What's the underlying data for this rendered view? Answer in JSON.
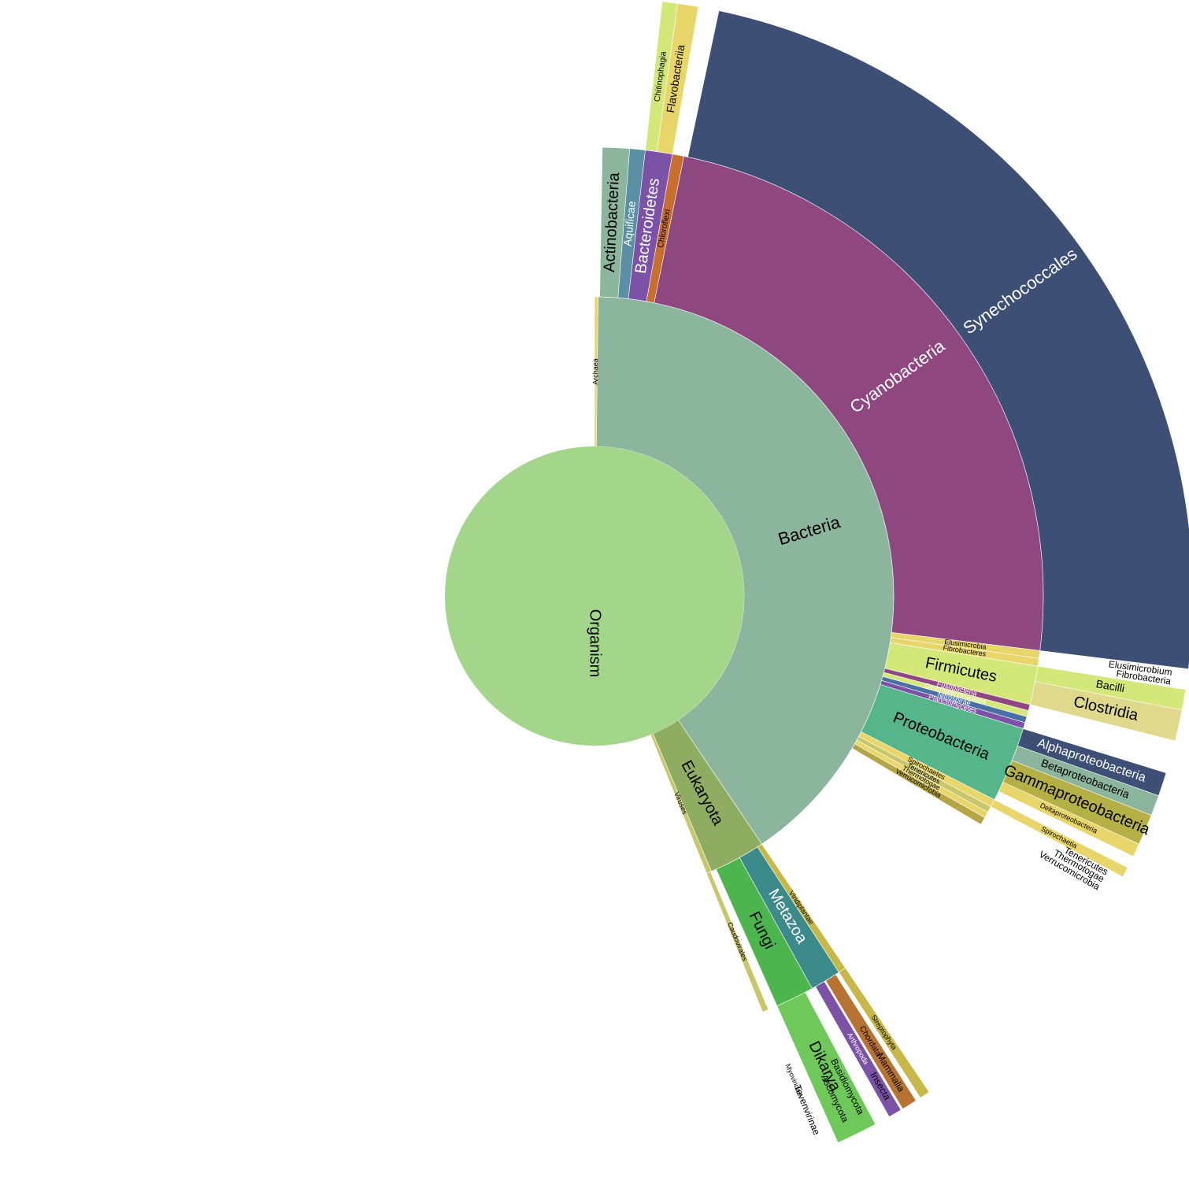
{
  "chart_data": {
    "type": "sunburst",
    "title": "",
    "center": {
      "name": "Organism",
      "color": "#a3d68a"
    },
    "rings": [
      [
        {
          "name": "Archaea",
          "start": 0.0,
          "end": 0.7,
          "color": "#e8d66a",
          "label_color": "#000000"
        },
        {
          "name": "Bacteria",
          "start": 0.7,
          "end": 146.0,
          "color": "#8bb59c",
          "label_color": "#000000"
        },
        {
          "name": "Eukaryota",
          "start": 146.0,
          "end": 157.0,
          "color": "#8fad60",
          "label_color": "#000000"
        },
        {
          "name": "Viruses",
          "start": 157.0,
          "end": 158.0,
          "color": "#c8c66a",
          "label_color": "#000000"
        }
      ],
      [
        {
          "name": "Actinobacteria",
          "start": 1.0,
          "end": 4.5,
          "color": "#8bb59c",
          "label_color": "#000000"
        },
        {
          "name": "Aquificae",
          "start": 4.5,
          "end": 6.5,
          "color": "#5b8fa3",
          "label_color": "#ffffff"
        },
        {
          "name": "Bacteroidetes",
          "start": 6.5,
          "end": 10.0,
          "color": "#7b52a6",
          "label_color": "#ffffff"
        },
        {
          "name": "Chloroflexi",
          "start": 10.0,
          "end": 11.5,
          "color": "#c86f2f",
          "label_color": "#000000"
        },
        {
          "name": "Cyanobacteria",
          "start": 11.5,
          "end": 97.0,
          "color": "#8f4780",
          "label_color": "#ffffff"
        },
        {
          "name": "Elusimicrobia",
          "start": 97.0,
          "end": 98.0,
          "color": "#e8d66a",
          "label_color": "#000000"
        },
        {
          "name": "Fibrobacteres",
          "start": 98.0,
          "end": 99.0,
          "color": "#e8d66a",
          "label_color": "#000000"
        },
        {
          "name": "Firmicutes",
          "start": 99.0,
          "end": 104.0,
          "color": "#d4e87a",
          "label_color": "#000000"
        },
        {
          "name": "Fusobacteria",
          "start": 104.0,
          "end": 104.8,
          "color": "#8f4780",
          "label_color": "#ffffff"
        },
        {
          "name": "Gemmatimonadetes",
          "start": 104.8,
          "end": 105.6,
          "color": "#d4e87a",
          "label_color": "#ffffff"
        },
        {
          "name": "Nitrospirae",
          "start": 105.6,
          "end": 106.4,
          "color": "#4a6fa5",
          "label_color": "#ffffff"
        },
        {
          "name": "Planctomycetes",
          "start": 106.4,
          "end": 107.2,
          "color": "#7b52a6",
          "label_color": "#ffffff"
        },
        {
          "name": "Proteobacteria",
          "start": 107.2,
          "end": 117.0,
          "color": "#56b58a",
          "label_color": "#000000"
        },
        {
          "name": "Spirochaetes",
          "start": 117.0,
          "end": 118.0,
          "color": "#e8d66a",
          "label_color": "#000000"
        },
        {
          "name": "Tenericutes",
          "start": 118.0,
          "end": 118.8,
          "color": "#c8c66a",
          "label_color": "#000000"
        },
        {
          "name": "Thermotogae",
          "start": 118.8,
          "end": 119.6,
          "color": "#e8d66a",
          "label_color": "#000000"
        },
        {
          "name": "Verrucomicrobia",
          "start": 119.6,
          "end": 120.6,
          "color": "#b5a645",
          "label_color": "#000000"
        },
        {
          "name": "Metazoa",
          "start": 147.0,
          "end": 151.0,
          "color": "#3d8a8a",
          "label_color": "#ffffff"
        },
        {
          "name": "Fungi",
          "start": 151.0,
          "end": 156.0,
          "color": "#4db54d",
          "label_color": "#000000"
        },
        {
          "name": "Viridiplantae",
          "start": 146.0,
          "end": 147.0,
          "color": "#c8b84a",
          "label_color": "#000000"
        },
        {
          "name": "Caudovirales",
          "start": 157.2,
          "end": 158.0,
          "color": "#c8c66a",
          "label_color": "#000000"
        }
      ],
      [
        {
          "name": "Synechococcales",
          "start": 12.0,
          "end": 97.0,
          "color": "#3e4f75",
          "label_color": "#ffffff"
        },
        {
          "name": "Chitinophagia",
          "start": 6.5,
          "end": 8.0,
          "color": "#d4e87a",
          "label_color": "#000000"
        },
        {
          "name": "Flavobacteriia",
          "start": 8.0,
          "end": 10.0,
          "color": "#e8d66a",
          "label_color": "#000000"
        },
        {
          "name": "Bacilli",
          "start": 99.0,
          "end": 101.0,
          "color": "#d4e87a",
          "label_color": "#000000"
        },
        {
          "name": "Clostridia",
          "start": 101.0,
          "end": 104.0,
          "color": "#e0d88a",
          "label_color": "#000000"
        },
        {
          "name": "Alphaproteobacteria",
          "start": 107.2,
          "end": 109.5,
          "color": "#3e4f75",
          "label_color": "#ffffff"
        },
        {
          "name": "Betaproteobacteria",
          "start": 109.5,
          "end": 111.5,
          "color": "#8bb59c",
          "label_color": "#000000"
        },
        {
          "name": "Gammaproteobacteria",
          "start": 111.5,
          "end": 114.5,
          "color": "#b5b045",
          "label_color": "#000000"
        },
        {
          "name": "Deltaproteobacteria",
          "start": 114.5,
          "end": 115.8,
          "color": "#e8d66a",
          "label_color": "#000000"
        },
        {
          "name": "Spirochaetia",
          "start": 117.0,
          "end": 118.0,
          "color": "#e8d66a",
          "label_color": "#000000"
        },
        {
          "name": "Dikarya",
          "start": 152.0,
          "end": 156.0,
          "color": "#6fc95a",
          "label_color": "#000000"
        },
        {
          "name": "Arthropoda",
          "start": 149.2,
          "end": 150.5,
          "color": "#7b52a6",
          "label_color": "#ffffff"
        },
        {
          "name": "Chordata",
          "start": 147.5,
          "end": 149.0,
          "color": "#b87333",
          "label_color": "#000000"
        },
        {
          "name": "Streptophyta",
          "start": 146.0,
          "end": 147.0,
          "color": "#c8b84a",
          "label_color": "#000000"
        },
        {
          "name": "Myoviridae",
          "start": 157.3,
          "end": 158.0,
          "color": "#ffffff",
          "label_color": "#000000"
        }
      ]
    ],
    "rim_labels": [
      {
        "text": "Fibrobacteria",
        "angle": 98.5
      },
      {
        "text": "Elusimicrobium",
        "angle": 97.6
      },
      {
        "text": "Tenericutes",
        "angle": 118.4
      },
      {
        "text": "Thermotogae",
        "angle": 119.2
      },
      {
        "text": "Verrucomicrobia",
        "angle": 120.1
      },
      {
        "text": "Ascomycota",
        "angle": 154.5
      },
      {
        "text": "Basidiomycota",
        "angle": 152.8
      },
      {
        "text": "Mammalia",
        "angle": 148.2
      },
      {
        "text": "Insecta",
        "angle": 149.8
      },
      {
        "text": "Tevenvirinae",
        "angle": 157.6
      }
    ]
  }
}
